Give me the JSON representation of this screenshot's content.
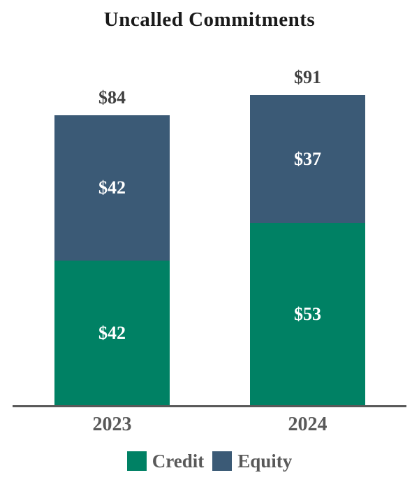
{
  "title": "Uncalled Commitments",
  "colors": {
    "credit": "#008164",
    "equity": "#3B5A76",
    "axis": "#595959",
    "category_text": "#595959",
    "total_text": "#404040",
    "in_bar_text": "#FFFFFF",
    "background": "#FFFFFF"
  },
  "legend": [
    {
      "name": "Credit",
      "color": "#008164"
    },
    {
      "name": "Equity",
      "color": "#3B5A76"
    }
  ],
  "chart_data": {
    "type": "bar",
    "stacked": true,
    "title": "Uncalled Commitments",
    "categories": [
      "2023",
      "2024"
    ],
    "series": [
      {
        "name": "Credit",
        "values": [
          42,
          53
        ],
        "labels": [
          "$42",
          "$53"
        ],
        "color": "#008164"
      },
      {
        "name": "Equity",
        "values": [
          42,
          37
        ],
        "labels": [
          "$42",
          "$37"
        ],
        "color": "#3B5A76"
      }
    ],
    "totals": [
      84,
      91
    ],
    "total_labels": [
      "$84",
      "$91"
    ],
    "xlabel": "",
    "ylabel": "",
    "ylim": [
      0,
      95
    ],
    "grid": false,
    "legend_position": "bottom"
  }
}
